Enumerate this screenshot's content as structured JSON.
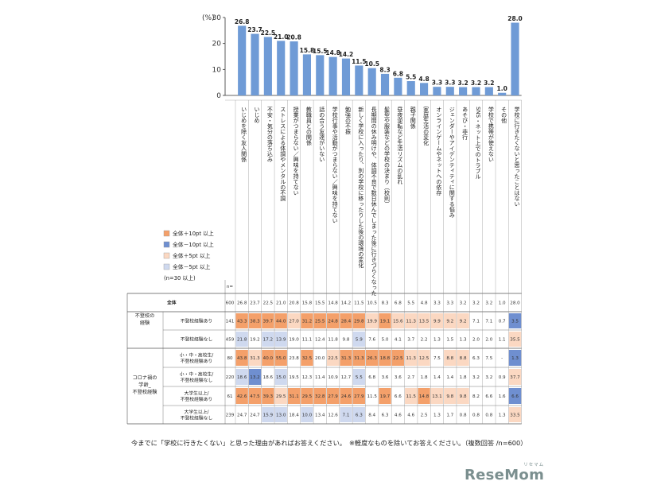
{
  "chart_data": {
    "type": "bar",
    "ylabel": "(%)",
    "ylim": [
      0,
      30
    ],
    "yticks": [
      0,
      10,
      20,
      30
    ],
    "categories": [
      "いじめを除く友人関係",
      "いじめ",
      "不安・気分の落ち込み",
      "ストレスによる体調やメンタルの不調",
      "授業がつまらない／興味を持てない",
      "教職員との関係",
      "話の合う友達がいない",
      "学校行事や活動がつまらない／興味を持てない",
      "勉強の不振",
      "新しく学校に入ったり、別の学校に移ったりした後の環境の変化",
      "長期間の休み明けや、体調不良で数日休んでしまった後に行きづらくなった",
      "髪型や服装などの学校の決まり（校則）",
      "昼夜逆転など生活リズムの乱れ",
      "親子関係",
      "家庭生活の変化",
      "オンラインゲームやネットへの依存",
      "ジェンダーやアイデンティティに関する悩み",
      "あそび・非行",
      "SNS・ネット上でのトラブル",
      "学校で携帯が使えない",
      "その他",
      "学校に行きたくないと思ったことはない"
    ],
    "values": [
      26.8,
      23.7,
      22.5,
      21.0,
      20.8,
      15.8,
      15.5,
      14.8,
      14.2,
      11.5,
      10.5,
      8.3,
      6.8,
      5.5,
      4.8,
      3.3,
      3.3,
      3.2,
      3.2,
      3.2,
      1.0,
      28.0
    ],
    "bar_color": "#6f9bd6",
    "legend": [
      {
        "label": "全体＋10pt 以上",
        "color": "#f4a06a"
      },
      {
        "label": "全体－10pt 以上",
        "color": "#6f8fd0"
      },
      {
        "label": "全体＋5pt 以上",
        "color": "#fbd8c2"
      },
      {
        "label": "全体－5pt 以上",
        "color": "#cfd9ef"
      }
    ],
    "legend_note": "(n=30 以上)",
    "n_header": "n=",
    "table_rows": [
      {
        "group": "",
        "label": "全体",
        "n": "600",
        "values": [
          "26.8",
          "23.7",
          "22.5",
          "21.0",
          "20.8",
          "15.8",
          "15.5",
          "14.8",
          "14.2",
          "11.5",
          "10.5",
          "8.3",
          "6.8",
          "5.5",
          "4.8",
          "3.3",
          "3.3",
          "3.2",
          "3.2",
          "3.2",
          "1.0",
          "28.0"
        ]
      },
      {
        "group": "不登校の経験",
        "label": "不登校経験あり",
        "n": "141",
        "values": [
          "43.3",
          "38.3",
          "39.7",
          "44.0",
          "27.0",
          "31.2",
          "25.5",
          "24.8",
          "28.4",
          "29.8",
          "19.9",
          "19.1",
          "15.6",
          "11.3",
          "13.5",
          "9.9",
          "9.2",
          "9.2",
          "7.1",
          "7.1",
          "0.7",
          "3.5"
        ]
      },
      {
        "group": "不登校の経験",
        "label": "不登校経験なし",
        "n": "459",
        "values": [
          "21.8",
          "19.2",
          "17.2",
          "13.9",
          "19.0",
          "11.1",
          "12.4",
          "11.8",
          "9.8",
          "5.9",
          "7.6",
          "5.0",
          "4.1",
          "3.7",
          "2.2",
          "1.3",
          "1.5",
          "1.3",
          "2.0",
          "2.0",
          "1.1",
          "35.5"
        ]
      },
      {
        "group": "コロナ禍の学齢_不登校経験",
        "label": "小・中・高校生/不登校経験あり",
        "n": "80",
        "values": [
          "43.8",
          "31.3",
          "40.0",
          "55.0",
          "23.8",
          "32.5",
          "20.0",
          "22.5",
          "31.3",
          "31.3",
          "26.3",
          "18.8",
          "22.5",
          "11.3",
          "12.5",
          "7.5",
          "8.8",
          "8.8",
          "6.3",
          "7.5",
          "-",
          "1.3"
        ]
      },
      {
        "group": "コロナ禍の学齢_不登校経験",
        "label": "小・中・高校生/不登校経験なし",
        "n": "220",
        "values": [
          "18.6",
          "13.2",
          "18.6",
          "15.0",
          "19.5",
          "12.3",
          "11.4",
          "10.9",
          "12.7",
          "5.5",
          "6.8",
          "3.6",
          "3.6",
          "2.7",
          "1.8",
          "1.4",
          "1.4",
          "1.8",
          "3.2",
          "3.2",
          "0.9",
          "37.7"
        ]
      },
      {
        "group": "コロナ禍の学齢_不登校経験",
        "label": "大学生以上/不登校経験あり",
        "n": "61",
        "values": [
          "42.6",
          "47.5",
          "39.3",
          "29.5",
          "31.1",
          "29.5",
          "32.8",
          "27.9",
          "24.6",
          "27.9",
          "11.5",
          "19.7",
          "6.6",
          "11.5",
          "14.8",
          "13.1",
          "9.8",
          "9.8",
          "8.2",
          "6.6",
          "1.6",
          "6.6"
        ]
      },
      {
        "group": "コロナ禍の学齢_不登校経験",
        "label": "大学生以上/不登校経験なし",
        "n": "239",
        "values": [
          "24.7",
          "24.7",
          "15.9",
          "13.0",
          "18.4",
          "10.0",
          "13.4",
          "12.6",
          "7.1",
          "6.3",
          "8.4",
          "6.3",
          "4.6",
          "4.6",
          "2.5",
          "1.3",
          "1.7",
          "0.8",
          "0.8",
          "0.8",
          "1.3",
          "33.5"
        ]
      }
    ],
    "group_labels": {
      "truancy": [
        "不登校の",
        "経験"
      ],
      "covid": [
        "コロナ禍の",
        "学齢_",
        "不登校経験"
      ]
    },
    "highlight_colors": {
      "plus10": "#f4a06a",
      "minus10": "#6f8fd0",
      "plus5": "#fbd8c2",
      "minus5": "#cfd9ef"
    }
  },
  "footnote": "今までに「学校に行きたくない」と思った理由があればお答えください。　※軽度なものを除いてお答えください。（複数回答 /n=600）",
  "logo": {
    "text": "ReseMom",
    "kana": "リセマム"
  }
}
